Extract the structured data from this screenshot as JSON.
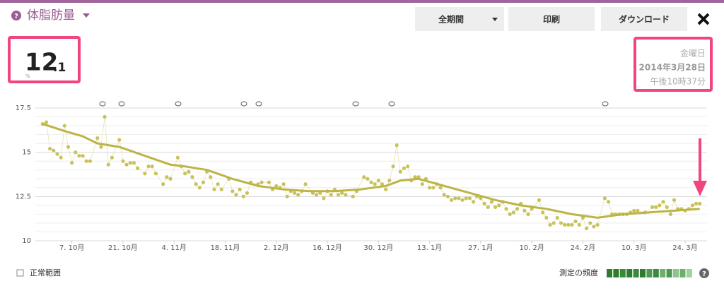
{
  "header": {
    "title": "体脂肪量"
  },
  "toolbar": {
    "buttons": [
      "全期間",
      "印刷",
      "ダウンロード"
    ]
  },
  "reading": {
    "integer": "12",
    "decimal": ".1",
    "unit": "%"
  },
  "timestamp": {
    "weekday": "金曜日",
    "date": "2014年3月28日",
    "time": "午後10時37分"
  },
  "footer": {
    "normal_range": "正常範囲",
    "frequency_label": "測定の頻度"
  },
  "chart_data": {
    "type": "line",
    "xlim": [
      "09-27",
      "03-30"
    ],
    "xticks": [
      {
        "value": "10-07",
        "label": "7. 10月"
      },
      {
        "value": "10-21",
        "label": "21. 10月"
      },
      {
        "value": "11-04",
        "label": "4. 11月"
      },
      {
        "value": "11-18",
        "label": "18. 11月"
      },
      {
        "value": "12-02",
        "label": "2. 12月"
      },
      {
        "value": "12-16",
        "label": "16. 12月"
      },
      {
        "value": "12-30",
        "label": "30. 12月"
      },
      {
        "value": "01-13",
        "label": "13. 1月"
      },
      {
        "value": "01-27",
        "label": "27. 1月"
      },
      {
        "value": "02-10",
        "label": "10. 2月"
      },
      {
        "value": "02-24",
        "label": "24. 2月"
      },
      {
        "value": "03-10",
        "label": "10. 3月"
      },
      {
        "value": "03-24",
        "label": "24. 3月"
      }
    ],
    "ylim": [
      10,
      17.5
    ],
    "yticks": [
      10,
      12.5,
      15,
      17.5
    ],
    "minor_yticks": [
      10.5,
      11,
      11.5,
      12,
      13,
      13.5,
      14,
      14.5,
      15.5,
      16,
      16.5,
      17
    ],
    "grid": true,
    "series": [
      {
        "color": "#c8c25a",
        "markers": true,
        "x": [
          "09-29",
          "09-30",
          "10-01",
          "10-02",
          "10-03",
          "10-04",
          "10-05",
          "10-06",
          "10-07",
          "10-08",
          "10-09",
          "10-10",
          "10-11",
          "10-12",
          "10-14",
          "10-15",
          "10-16",
          "10-17",
          "10-18",
          "10-20",
          "10-21",
          "10-22",
          "10-23",
          "10-24",
          "10-25",
          "10-27",
          "10-28",
          "10-29",
          "10-30",
          "11-01",
          "11-02",
          "11-03",
          "11-05",
          "11-06",
          "11-07",
          "11-08",
          "11-09",
          "11-10",
          "11-11",
          "11-12",
          "11-13",
          "11-14",
          "11-15",
          "11-16",
          "11-17",
          "11-19",
          "11-20",
          "11-21",
          "11-22",
          "11-23",
          "11-24",
          "11-25",
          "11-27",
          "11-28",
          "11-30",
          "12-01",
          "12-02",
          "12-03",
          "12-04",
          "12-05",
          "12-06",
          "12-07",
          "12-08",
          "12-09",
          "12-10",
          "12-12",
          "12-13",
          "12-14",
          "12-15",
          "12-16",
          "12-17",
          "12-18",
          "12-19",
          "12-20",
          "12-21",
          "12-23",
          "12-24",
          "12-26",
          "12-27",
          "12-28",
          "12-29",
          "12-30",
          "12-31",
          "01-01",
          "01-02",
          "01-03",
          "01-04",
          "01-05",
          "01-06",
          "01-07",
          "01-08",
          "01-09",
          "01-10",
          "01-11",
          "01-12",
          "01-13",
          "01-14",
          "01-15",
          "01-16",
          "01-17",
          "01-18",
          "01-19",
          "01-20",
          "01-21",
          "01-22",
          "01-23",
          "01-24",
          "01-25",
          "01-26",
          "01-27",
          "01-28",
          "01-29",
          "01-30",
          "01-31",
          "02-01",
          "02-02",
          "02-03",
          "02-04",
          "02-05",
          "02-06",
          "02-07",
          "02-08",
          "02-09",
          "02-10",
          "02-12",
          "02-13",
          "02-14",
          "02-15",
          "02-16",
          "02-17",
          "02-18",
          "02-19",
          "02-20",
          "02-21",
          "02-22",
          "02-23",
          "02-24",
          "02-25",
          "02-26",
          "02-27",
          "02-28",
          "03-02",
          "03-03",
          "03-04",
          "03-05",
          "03-06",
          "03-07",
          "03-08",
          "03-09",
          "03-10",
          "03-11",
          "03-13",
          "03-15",
          "03-16",
          "03-17",
          "03-18",
          "03-19",
          "03-20",
          "03-21",
          "03-22",
          "03-23",
          "03-24",
          "03-25",
          "03-26",
          "03-27",
          "03-28"
        ],
        "values": [
          16.6,
          16.7,
          15.2,
          15.1,
          14.9,
          14.7,
          16.5,
          15.3,
          14.4,
          15.0,
          14.8,
          14.8,
          14.5,
          14.5,
          15.8,
          15.3,
          17.0,
          14.3,
          14.7,
          15.7,
          14.5,
          14.3,
          14.4,
          14.4,
          14.1,
          13.8,
          14.2,
          14.2,
          13.8,
          13.2,
          13.6,
          13.5,
          14.7,
          14.2,
          13.8,
          13.9,
          13.6,
          13.2,
          13.0,
          13.3,
          13.9,
          13.6,
          12.9,
          13.2,
          12.9,
          13.5,
          12.8,
          12.6,
          12.9,
          12.5,
          12.7,
          13.3,
          13.2,
          13.3,
          13.3,
          12.9,
          13.1,
          13.0,
          13.2,
          12.5,
          12.8,
          12.7,
          12.6,
          12.8,
          13.2,
          12.7,
          12.6,
          12.7,
          12.4,
          12.8,
          12.6,
          12.9,
          12.6,
          12.7,
          12.6,
          12.5,
          12.8,
          13.6,
          13.5,
          13.3,
          13.2,
          13.4,
          13.2,
          12.9,
          13.4,
          14.2,
          15.4,
          13.9,
          14.1,
          14.2,
          13.4,
          13.6,
          13.6,
          13.2,
          13.5,
          13.0,
          13.0,
          13.2,
          13.0,
          12.6,
          12.5,
          12.3,
          12.4,
          12.4,
          12.3,
          12.4,
          12.4,
          12.2,
          12.5,
          12.4,
          12.1,
          11.9,
          12.2,
          11.9,
          12.0,
          12.2,
          11.8,
          11.5,
          11.6,
          11.8,
          12.1,
          11.7,
          11.5,
          11.8,
          12.3,
          11.6,
          11.3,
          10.9,
          11.0,
          11.3,
          11.0,
          10.9,
          10.9,
          10.9,
          11.1,
          10.9,
          11.3,
          10.7,
          11.0,
          10.8,
          10.9,
          12.4,
          12.2,
          11.5,
          11.5,
          11.5,
          11.5,
          11.5,
          11.6,
          11.7,
          11.7,
          11.6,
          11.9,
          11.9,
          12.0,
          12.2,
          11.9,
          11.5,
          12.3,
          11.8,
          11.8,
          11.7,
          11.8,
          12.0,
          12.1,
          12.1
        ]
      },
      {
        "color": "#bdb446",
        "x": [
          "09-29",
          "10-05",
          "10-10",
          "10-14",
          "10-20",
          "10-27",
          "11-03",
          "11-07",
          "11-13",
          "11-20",
          "11-27",
          "12-04",
          "12-11",
          "12-18",
          "12-25",
          "01-01",
          "01-05",
          "01-10",
          "01-17",
          "01-24",
          "01-31",
          "02-07",
          "02-14",
          "02-21",
          "02-28",
          "03-07",
          "03-14",
          "03-21",
          "03-28"
        ],
        "values": [
          16.6,
          16.2,
          15.9,
          15.5,
          15.3,
          14.8,
          14.3,
          14.2,
          14.0,
          13.5,
          13.1,
          12.9,
          12.8,
          12.8,
          12.9,
          13.1,
          13.4,
          13.5,
          13.1,
          12.7,
          12.3,
          12.0,
          11.8,
          11.5,
          11.3,
          11.5,
          11.6,
          11.7,
          11.8
        ]
      }
    ]
  }
}
